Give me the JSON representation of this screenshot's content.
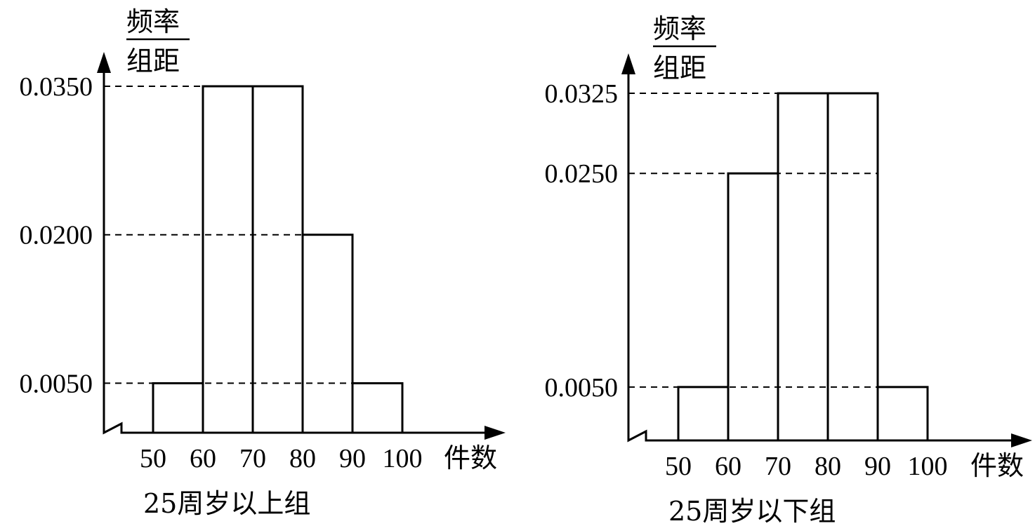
{
  "chart_data": [
    {
      "type": "bar",
      "ylabel_numerator": "频率",
      "ylabel_denominator": "组距",
      "xlabel": "件数",
      "caption": "25周岁以上组",
      "x_ticks": [
        "50",
        "60",
        "70",
        "80",
        "90",
        "100"
      ],
      "y_ticks": [
        "0.0350",
        "0.0200",
        "0.0050"
      ],
      "bins": [
        [
          50,
          60
        ],
        [
          60,
          70
        ],
        [
          70,
          80
        ],
        [
          80,
          90
        ],
        [
          90,
          100
        ]
      ],
      "values": [
        0.005,
        0.035,
        0.035,
        0.02,
        0.005
      ],
      "ylim": [
        0,
        0.035
      ],
      "axis_break": true
    },
    {
      "type": "bar",
      "ylabel_numerator": "频率",
      "ylabel_denominator": "组距",
      "xlabel": "件数",
      "caption": "25周岁以下组",
      "x_ticks": [
        "50",
        "60",
        "70",
        "80",
        "90",
        "100"
      ],
      "y_ticks": [
        "0.0325",
        "0.0250",
        "0.0050"
      ],
      "bins": [
        [
          50,
          60
        ],
        [
          60,
          70
        ],
        [
          70,
          80
        ],
        [
          80,
          90
        ],
        [
          90,
          100
        ]
      ],
      "values": [
        0.005,
        0.025,
        0.0325,
        0.0325,
        0.005
      ],
      "ylim": [
        0,
        0.0325
      ],
      "axis_break": true
    }
  ]
}
